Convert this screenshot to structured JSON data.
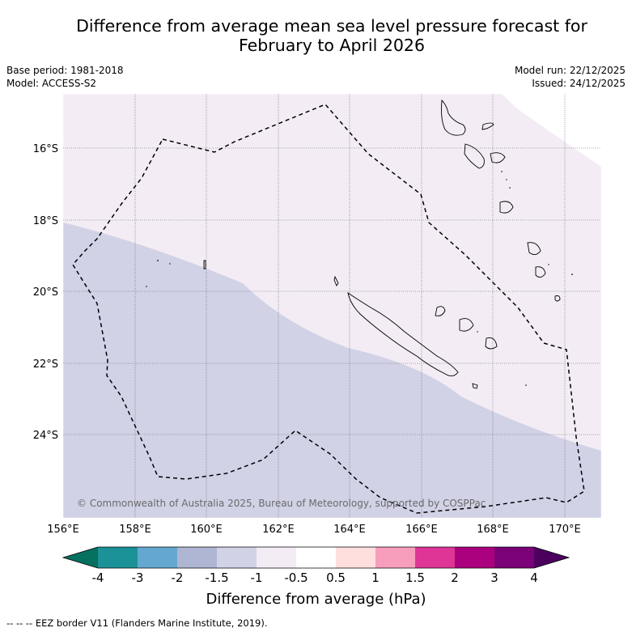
{
  "header": {
    "title_line1": "Difference from average mean sea level pressure forecast for",
    "title_line2": "February to April 2026",
    "base_period": "Base period: 1981-2018",
    "model": "Model: ACCESS-S2",
    "model_run": "Model run: 22/12/2025",
    "issued": "Issued: 24/12/2025"
  },
  "map": {
    "lon_labels": [
      "156°E",
      "158°E",
      "160°E",
      "162°E",
      "164°E",
      "166°E",
      "168°E",
      "170°E"
    ],
    "lat_labels": [
      "16°S",
      "18°S",
      "20°S",
      "22°S",
      "24°S"
    ],
    "copyright": "© Commonwealth of Australia 2025, Bureau of Meteorology, supported by COSPPac",
    "colors": {
      "band_neg_1_to_neg_0_5": "#f3ecf5",
      "band_neg_1_5_to_neg_1": "#d1d2e6",
      "border_line": "#000000",
      "grid_line": "#555555"
    }
  },
  "colorbar": {
    "ticks": [
      "-4",
      "-3",
      "-2",
      "-1.5",
      "-1",
      "-0.5",
      "0.5",
      "1",
      "1.5",
      "2",
      "3",
      "4"
    ],
    "colors": [
      "#06705f",
      "#1b9297",
      "#64a8d0",
      "#afb6d3",
      "#d1d2e6",
      "#f3ecf5",
      "#ffffff",
      "#ffdede",
      "#f79ebd",
      "#de3597",
      "#ac017e",
      "#7a0177",
      "#4b005e"
    ],
    "label": "Difference from average (hPa)"
  },
  "legend": {
    "eez_note": "--  --  -- EEZ border V11 (Flanders Marine Institute, 2019)."
  }
}
